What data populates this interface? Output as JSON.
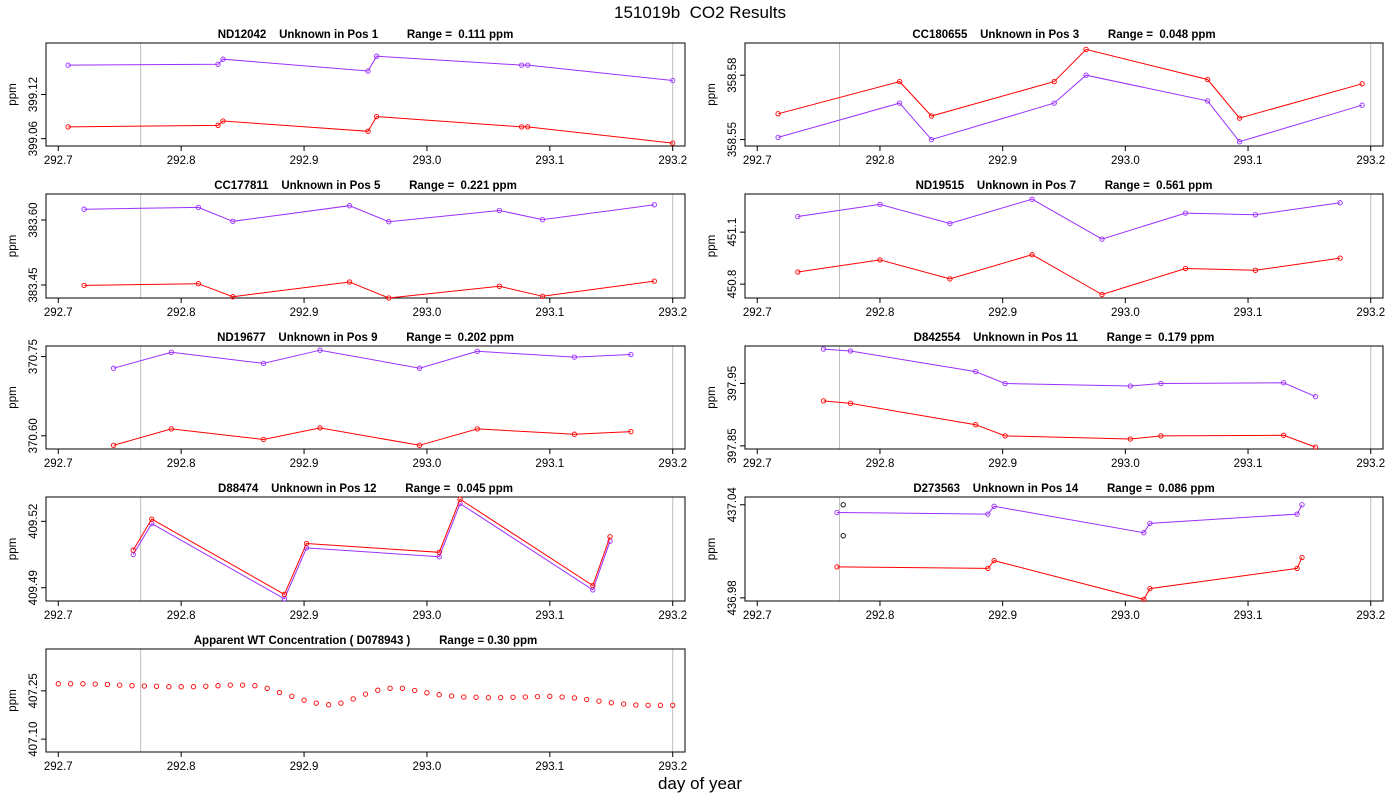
{
  "page_title": "151019b  CO2 Results",
  "x_axis_label": "day of year",
  "y_axis_label": "ppm",
  "colors": {
    "series_purple": "#9b30ff",
    "series_red": "#ff0000",
    "marker_black": "#000000",
    "ref_line": "#bebebe",
    "frame": "#000000"
  },
  "chart_data": [
    {
      "type": "line",
      "slot": 0,
      "title": "ND12042    Unknown in Pos 1         Range =  0.111 ppm",
      "xlabel": "",
      "ylabel": "ppm",
      "xlim": [
        292.69,
        293.21
      ],
      "ylim": [
        399.05,
        399.19
      ],
      "x_ticks": [
        "292.7",
        "292.8",
        "292.9",
        "293.0",
        "293.1",
        "293.2"
      ],
      "y_ticks": [
        "399.06",
        "399.12"
      ],
      "ref_lines": [
        292.767,
        293.2
      ],
      "series": [
        {
          "name": "purple",
          "color": "#9b30ff",
          "x": [
            292.708,
            292.83,
            292.834,
            292.952,
            292.959,
            293.077,
            293.082,
            293.2
          ],
          "y": [
            399.16,
            399.161,
            399.168,
            399.152,
            399.172,
            399.16,
            399.16,
            399.139
          ]
        },
        {
          "name": "red",
          "color": "#ff0000",
          "x": [
            292.708,
            292.83,
            292.834,
            292.952,
            292.959,
            293.077,
            293.082,
            293.2
          ],
          "y": [
            399.076,
            399.078,
            399.084,
            399.07,
            399.09,
            399.076,
            399.076,
            399.054
          ]
        }
      ]
    },
    {
      "type": "line",
      "slot": 1,
      "title": "CC180655    Unknown in Pos 3         Range =  0.048 ppm",
      "xlabel": "",
      "ylabel": "ppm",
      "xlim": [
        292.69,
        293.21
      ],
      "ylim": [
        358.547,
        358.595
      ],
      "x_ticks": [
        "292.7",
        "292.8",
        "292.9",
        "293.0",
        "293.1",
        "293.2"
      ],
      "y_ticks": [
        "358.55",
        "358.58"
      ],
      "ref_lines": [
        292.767,
        293.2
      ],
      "series": [
        {
          "name": "purple",
          "color": "#9b30ff",
          "x": [
            292.717,
            292.816,
            292.842,
            292.942,
            292.968,
            293.067,
            293.093,
            293.193
          ],
          "y": [
            358.551,
            358.567,
            358.55,
            358.567,
            358.58,
            358.568,
            358.549,
            358.566
          ]
        },
        {
          "name": "red",
          "color": "#ff0000",
          "x": [
            292.717,
            292.816,
            292.842,
            292.942,
            292.968,
            293.067,
            293.093,
            293.193
          ],
          "y": [
            358.562,
            358.577,
            358.561,
            358.577,
            358.592,
            358.578,
            358.56,
            358.576
          ]
        }
      ]
    },
    {
      "type": "line",
      "slot": 2,
      "title": "CC177811    Unknown in Pos 5         Range =  0.221 ppm",
      "xlabel": "",
      "ylabel": "ppm",
      "xlim": [
        292.69,
        293.21
      ],
      "ylim": [
        383.42,
        383.66
      ],
      "x_ticks": [
        "292.7",
        "292.8",
        "292.9",
        "293.0",
        "293.1",
        "293.2"
      ],
      "y_ticks": [
        "383.45",
        "383.60"
      ],
      "ref_lines": [
        292.767,
        293.2
      ],
      "series": [
        {
          "name": "purple",
          "color": "#9b30ff",
          "x": [
            292.721,
            292.814,
            292.842,
            292.937,
            292.969,
            293.059,
            293.094,
            293.185
          ],
          "y": [
            383.625,
            383.629,
            383.597,
            383.633,
            383.596,
            383.622,
            383.601,
            383.635
          ]
        },
        {
          "name": "red",
          "color": "#ff0000",
          "x": [
            292.721,
            292.814,
            292.842,
            292.937,
            292.969,
            293.059,
            293.094,
            293.185
          ],
          "y": [
            383.449,
            383.453,
            383.423,
            383.457,
            383.42,
            383.447,
            383.424,
            383.459
          ]
        }
      ]
    },
    {
      "type": "line",
      "slot": 3,
      "title": "ND19515    Unknown in Pos 7         Range =  0.561 ppm",
      "xlabel": "",
      "ylabel": "ppm",
      "xlim": [
        292.69,
        293.21
      ],
      "ylim": [
        450.72,
        451.32
      ],
      "x_ticks": [
        "292.7",
        "292.8",
        "292.9",
        "293.0",
        "293.1",
        "293.2"
      ],
      "y_ticks": [
        "450.8",
        "451.1"
      ],
      "ref_lines": [
        292.767,
        293.2
      ],
      "series": [
        {
          "name": "purple",
          "color": "#9b30ff",
          "x": [
            292.733,
            292.8,
            292.857,
            292.924,
            292.981,
            293.049,
            293.106,
            293.175
          ],
          "y": [
            451.19,
            451.26,
            451.15,
            451.29,
            451.06,
            451.21,
            451.2,
            451.27
          ]
        },
        {
          "name": "red",
          "color": "#ff0000",
          "x": [
            292.733,
            292.8,
            292.857,
            292.924,
            292.981,
            293.049,
            293.106,
            293.175
          ],
          "y": [
            450.87,
            450.94,
            450.83,
            450.97,
            450.74,
            450.89,
            450.88,
            450.95
          ]
        }
      ]
    },
    {
      "type": "line",
      "slot": 4,
      "title": "ND19677    Unknown in Pos 9         Range =  0.202 ppm",
      "xlabel": "",
      "ylabel": "ppm",
      "xlim": [
        292.69,
        293.21
      ],
      "ylim": [
        370.575,
        370.77
      ],
      "x_ticks": [
        "292.7",
        "292.8",
        "292.9",
        "293.0",
        "293.1",
        "293.2"
      ],
      "y_ticks": [
        "370.60",
        "370.75"
      ],
      "ref_lines": [
        292.767,
        293.2
      ],
      "series": [
        {
          "name": "purple",
          "color": "#9b30ff",
          "x": [
            292.745,
            292.792,
            292.867,
            292.913,
            292.994,
            293.041,
            293.12,
            293.166
          ],
          "y": [
            370.728,
            370.758,
            370.737,
            370.762,
            370.728,
            370.76,
            370.749,
            370.754
          ]
        },
        {
          "name": "red",
          "color": "#ff0000",
          "x": [
            292.745,
            292.792,
            292.867,
            292.913,
            292.994,
            293.041,
            293.12,
            293.166
          ],
          "y": [
            370.582,
            370.613,
            370.593,
            370.615,
            370.582,
            370.613,
            370.603,
            370.608
          ]
        }
      ]
    },
    {
      "type": "line",
      "slot": 5,
      "title": "D842554    Unknown in Pos 11         Range =  0.179 ppm",
      "xlabel": "",
      "ylabel": "ppm",
      "xlim": [
        292.69,
        293.21
      ],
      "ylim": [
        397.845,
        398.01
      ],
      "x_ticks": [
        "292.7",
        "292.8",
        "292.9",
        "293.0",
        "293.1",
        "293.2"
      ],
      "y_ticks": [
        "397.85",
        "397.95"
      ],
      "ref_lines": [
        292.767,
        293.2
      ],
      "series": [
        {
          "name": "purple",
          "color": "#9b30ff",
          "x": [
            292.754,
            292.776,
            292.878,
            292.902,
            293.004,
            293.029,
            293.129,
            293.155
          ],
          "y": [
            398.005,
            398.002,
            397.969,
            397.95,
            397.946,
            397.95,
            397.951,
            397.929
          ]
        },
        {
          "name": "red",
          "color": "#ff0000",
          "x": [
            292.754,
            292.776,
            292.878,
            292.902,
            293.004,
            293.029,
            293.129,
            293.155
          ],
          "y": [
            397.922,
            397.918,
            397.884,
            397.866,
            397.861,
            397.866,
            397.867,
            397.848
          ]
        }
      ]
    },
    {
      "type": "line",
      "slot": 6,
      "title": "D88474    Unknown in Pos 12         Range =  0.045 ppm",
      "xlabel": "",
      "ylabel": "ppm",
      "xlim": [
        292.69,
        293.21
      ],
      "ylim": [
        409.484,
        409.531
      ],
      "x_ticks": [
        "292.7",
        "292.8",
        "292.9",
        "293.0",
        "293.1",
        "293.2"
      ],
      "y_ticks": [
        "409.49",
        "409.52"
      ],
      "ref_lines": [
        292.767,
        293.2
      ],
      "series": [
        {
          "name": "purple",
          "color": "#9b30ff",
          "x": [
            292.761,
            292.776,
            292.884,
            292.902,
            293.01,
            293.027,
            293.135,
            293.149
          ],
          "y": [
            409.505,
            409.519,
            409.485,
            409.508,
            409.504,
            409.528,
            409.489,
            409.511
          ]
        },
        {
          "name": "red",
          "color": "#ff0000",
          "x": [
            292.761,
            292.776,
            292.884,
            292.902,
            293.01,
            293.027,
            293.135,
            293.149
          ],
          "y": [
            409.507,
            409.521,
            409.487,
            409.51,
            409.506,
            409.53,
            409.491,
            409.513
          ]
        }
      ]
    },
    {
      "type": "line",
      "slot": 7,
      "title": "D273563    Unknown in Pos 14         Range =  0.086 ppm",
      "xlabel": "",
      "ylabel": "ppm",
      "xlim": [
        292.69,
        293.21
      ],
      "ylim": [
        436.978,
        437.045
      ],
      "x_ticks": [
        "292.7",
        "292.8",
        "292.9",
        "293.0",
        "293.1",
        "293.2"
      ],
      "y_ticks": [
        "436.98",
        "437.04"
      ],
      "ref_lines": [
        292.767,
        293.2
      ],
      "series": [
        {
          "name": "purple",
          "color": "#9b30ff",
          "x": [
            292.765,
            292.888,
            292.893,
            293.015,
            293.02,
            293.14,
            293.144
          ],
          "y": [
            437.035,
            437.034,
            437.039,
            437.022,
            437.028,
            437.034,
            437.04
          ]
        },
        {
          "name": "red",
          "color": "#ff0000",
          "x": [
            292.765,
            292.888,
            292.893,
            293.015,
            293.02,
            293.14,
            293.144
          ],
          "y": [
            437.0,
            436.999,
            437.004,
            436.979,
            436.986,
            436.999,
            437.006
          ]
        },
        {
          "name": "black",
          "color": "#000000",
          "markers_only": true,
          "x": [
            292.77,
            292.77
          ],
          "y": [
            437.04,
            437.02
          ]
        }
      ]
    },
    {
      "type": "scatter",
      "slot": 8,
      "title": "Apparent WT Concentration ( D078943 )         Range = 0.30 ppm",
      "xlabel": "",
      "ylabel": "ppm",
      "xlim": [
        292.69,
        293.21
      ],
      "ylim": [
        407.06,
        407.38
      ],
      "x_ticks": [
        "292.7",
        "292.8",
        "292.9",
        "293.0",
        "293.1",
        "293.2"
      ],
      "y_ticks": [
        "407.10",
        "407.25"
      ],
      "ref_lines": [
        292.767,
        293.2
      ],
      "series": [
        {
          "name": "WT",
          "color": "#ff0000",
          "x": [
            292.7,
            292.71,
            292.72,
            292.73,
            292.74,
            292.75,
            292.76,
            292.77,
            292.78,
            292.79,
            292.8,
            292.81,
            292.82,
            292.83,
            292.84,
            292.85,
            292.86,
            292.87,
            292.88,
            292.89,
            292.9,
            292.91,
            292.92,
            292.93,
            292.94,
            292.95,
            292.96,
            292.97,
            292.98,
            292.99,
            293.0,
            293.01,
            293.02,
            293.03,
            293.04,
            293.05,
            293.06,
            293.07,
            293.08,
            293.09,
            293.1,
            293.11,
            293.12,
            293.13,
            293.14,
            293.15,
            293.16,
            293.17,
            293.18,
            293.19,
            293.2
          ],
          "y": [
            407.272,
            407.272,
            407.272,
            407.271,
            407.27,
            407.268,
            407.266,
            407.265,
            407.264,
            407.263,
            407.263,
            407.263,
            407.264,
            407.266,
            407.268,
            407.268,
            407.266,
            407.258,
            407.245,
            407.233,
            407.221,
            407.212,
            407.207,
            407.212,
            407.225,
            407.24,
            407.252,
            407.258,
            407.258,
            407.251,
            407.244,
            407.238,
            407.234,
            407.231,
            407.23,
            407.229,
            407.229,
            407.23,
            407.231,
            407.232,
            407.233,
            407.231,
            407.228,
            407.223,
            407.218,
            407.213,
            407.209,
            407.206,
            407.205,
            407.205,
            407.205
          ]
        }
      ]
    }
  ]
}
